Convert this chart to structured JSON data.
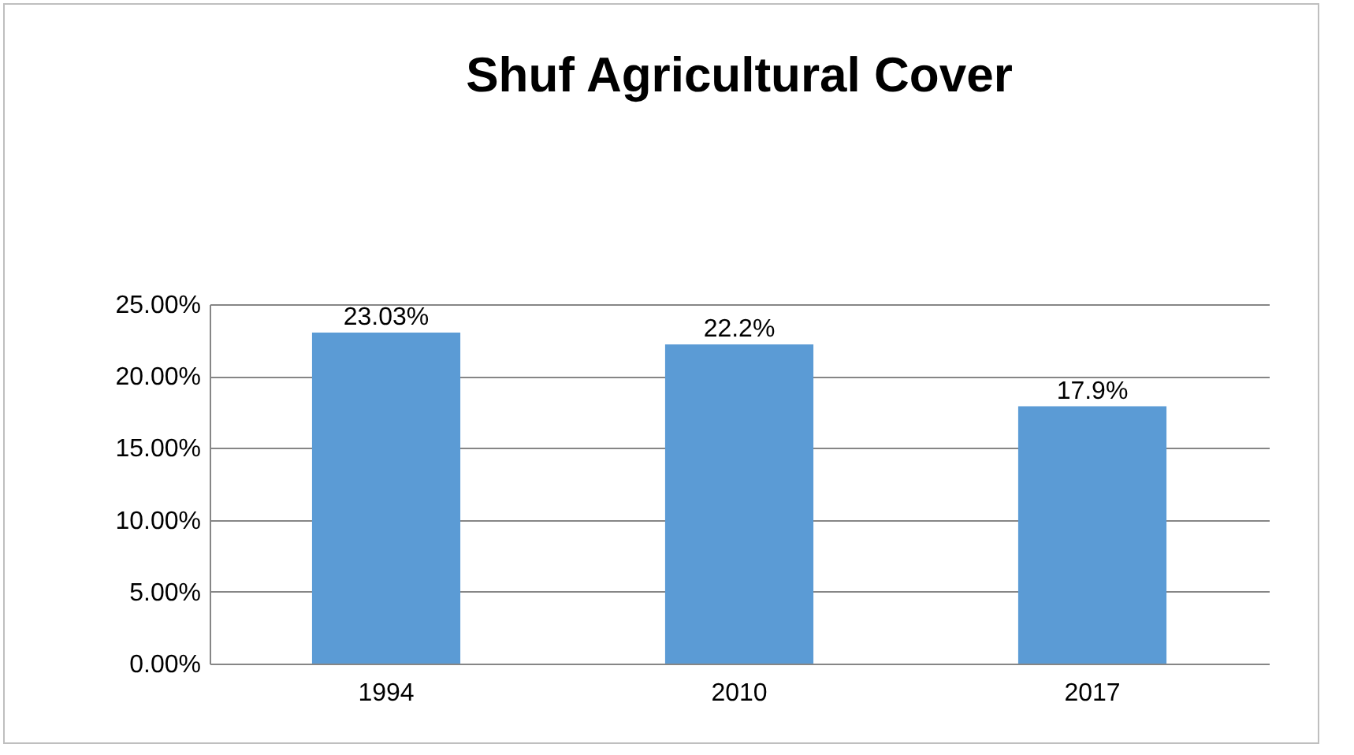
{
  "chart_data": {
    "type": "bar",
    "title": "Shuf Agricultural Cover",
    "categories": [
      "1994",
      "2010",
      "2017"
    ],
    "values": [
      23.03,
      22.2,
      17.9
    ],
    "value_labels": [
      "23.03%",
      "22.2%",
      "17.9%"
    ],
    "color": "#5b9bd5",
    "ylim": [
      0,
      25
    ],
    "yticks": [
      {
        "value": 0,
        "label": "0.00%"
      },
      {
        "value": 5,
        "label": "5.00%"
      },
      {
        "value": 10,
        "label": "10.00%"
      },
      {
        "value": 15,
        "label": "15.00%"
      },
      {
        "value": 20,
        "label": "20.00%"
      },
      {
        "value": 25,
        "label": "25.00%"
      }
    ],
    "grid": "y"
  }
}
